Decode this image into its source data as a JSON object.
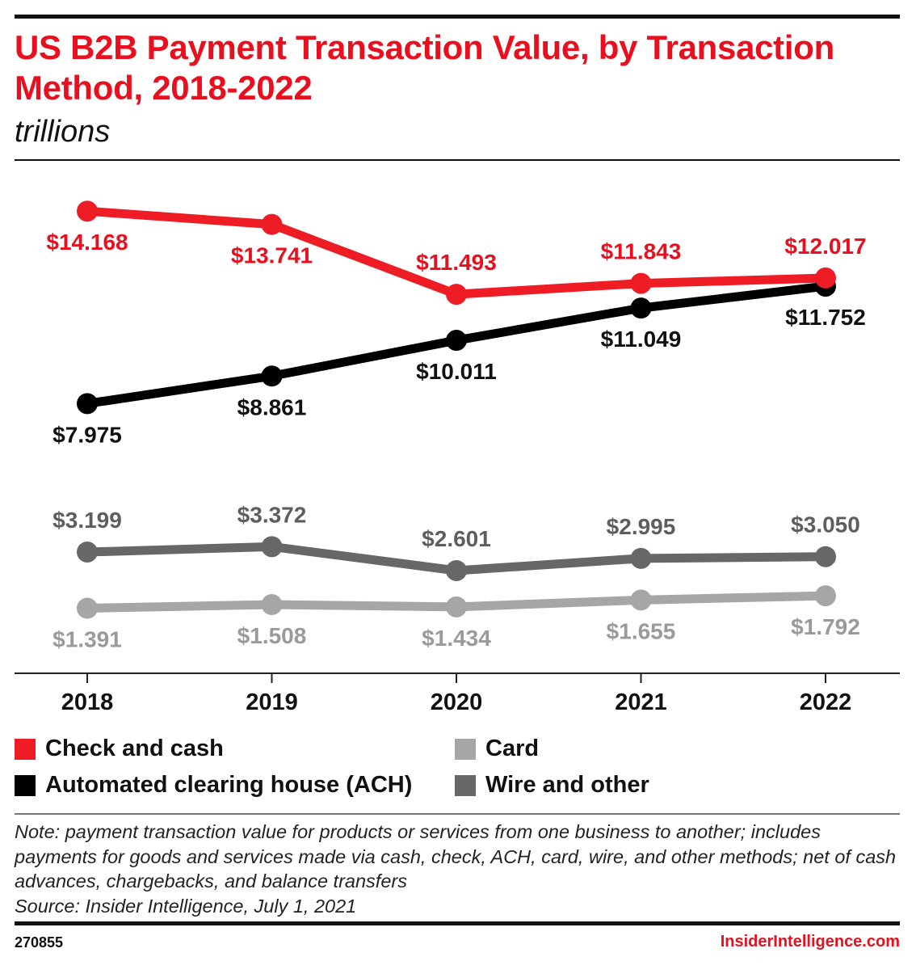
{
  "header": {
    "title": "US B2B Payment Transaction Value, by Transaction Method, 2018-2022",
    "subtitle": "trillions"
  },
  "legend": [
    {
      "label": "Check and cash",
      "color": "#ee1c25"
    },
    {
      "label": "Automated clearing house (ACH)",
      "color": "#000000"
    },
    {
      "label": "Card",
      "color": "#a6a6a6"
    },
    {
      "label": "Wire and other",
      "color": "#676767"
    }
  ],
  "note": {
    "text": "Note: payment transaction value for products or services from one business to another; includes payments for goods and services made via cash, check, ACH, card, wire, and other methods; net of cash advances, chargebacks, and balance transfers",
    "source": "Source: Insider Intelligence, July 1, 2021"
  },
  "footer": {
    "chart_id": "270855",
    "brand": "InsiderIntelligence.com"
  },
  "chart_data": {
    "type": "line",
    "title": "US B2B Payment Transaction Value, by Transaction Method, 2018-2022",
    "subtitle": "trillions",
    "x": [
      "2018",
      "2019",
      "2020",
      "2021",
      "2022"
    ],
    "series": [
      {
        "name": "Check and cash",
        "color": "#ee1c25",
        "labelColor": "#e8101e",
        "values": [
          14.168,
          13.741,
          11.493,
          11.843,
          12.017
        ],
        "labels": [
          "$14.168",
          "$13.741",
          "$11.493",
          "$11.843",
          "$12.017"
        ],
        "labelSides": [
          "below",
          "below",
          "above",
          "above",
          "above"
        ]
      },
      {
        "name": "Automated clearing house (ACH)",
        "color": "#000000",
        "labelColor": "#111111",
        "values": [
          7.975,
          8.861,
          10.011,
          11.049,
          11.752
        ],
        "labels": [
          "$7.975",
          "$8.861",
          "$10.011",
          "$11.049",
          "$11.752"
        ],
        "labelSides": [
          "below",
          "below",
          "below",
          "below",
          "below"
        ]
      },
      {
        "name": "Wire and other",
        "color": "#676767",
        "labelColor": "#5e5e5e",
        "values": [
          3.199,
          3.372,
          2.601,
          2.995,
          3.05
        ],
        "labels": [
          "$3.199",
          "$3.372",
          "$2.601",
          "$2.995",
          "$3.050"
        ],
        "labelSides": [
          "above",
          "above",
          "above",
          "above",
          "above"
        ]
      },
      {
        "name": "Card",
        "color": "#a6a6a6",
        "labelColor": "#9a9a9a",
        "values": [
          1.391,
          1.508,
          1.434,
          1.655,
          1.792
        ],
        "labels": [
          "$1.391",
          "$1.508",
          "$1.434",
          "$1.655",
          "$1.792"
        ],
        "labelSides": [
          "below",
          "below",
          "below",
          "below",
          "below"
        ]
      }
    ],
    "ylim": [
      0,
      15.5
    ],
    "grid": false,
    "legend_position": "bottom"
  }
}
